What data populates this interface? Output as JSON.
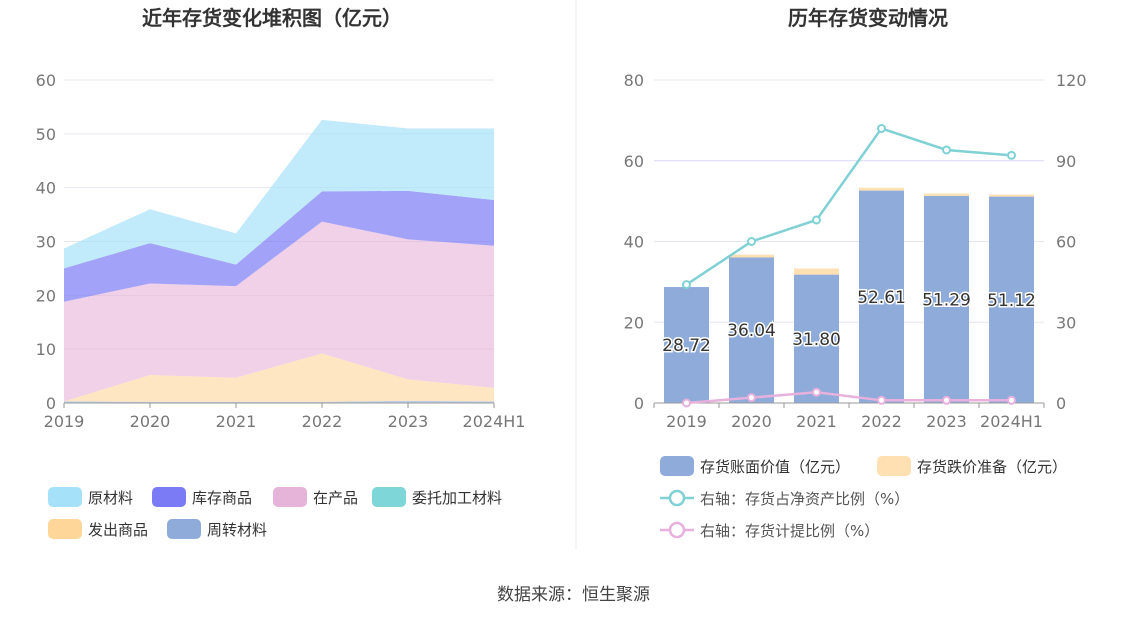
{
  "footer": {
    "source": "数据来源：恒生聚源"
  },
  "chart_data": [
    {
      "type": "area",
      "stacked": true,
      "title": "近年存货变化堆积图（亿元）",
      "categories": [
        "2019",
        "2020",
        "2021",
        "2022",
        "2023",
        "2024H1"
      ],
      "ylim": [
        0,
        60
      ],
      "yticks": [
        0,
        10,
        20,
        30,
        40,
        50,
        60
      ],
      "grid": true,
      "legend_position": "bottom",
      "series": [
        {
          "name": "周转材料",
          "color": "#8eabda",
          "values": [
            0.3,
            0.2,
            0.2,
            0.2,
            0.4,
            0.3
          ]
        },
        {
          "name": "发出商品",
          "color": "#ffd699",
          "values": [
            0,
            5,
            4.5,
            9,
            4,
            2.5
          ]
        },
        {
          "name": "在产品",
          "color": "#e6b3d9",
          "values": [
            18.5,
            17,
            17,
            24.5,
            26,
            26.4
          ]
        },
        {
          "name": "委托加工材料",
          "color": "#7fd6d9",
          "values": [
            0,
            0,
            0,
            0,
            0,
            0
          ]
        },
        {
          "name": "库存商品",
          "color": "#7b7bf5",
          "values": [
            6.2,
            7.5,
            4,
            5.6,
            9,
            8.5
          ]
        },
        {
          "name": "原材料",
          "color": "#a6e1fa",
          "values": [
            3.7,
            6.3,
            5.8,
            13.3,
            11.6,
            13.3
          ]
        }
      ],
      "legend_order": [
        "原材料",
        "库存商品",
        "在产品",
        "委托加工材料",
        "发出商品",
        "周转材料"
      ]
    },
    {
      "type": "bar",
      "title": "历年存货变动情况",
      "categories": [
        "2019",
        "2020",
        "2021",
        "2022",
        "2023",
        "2024H1"
      ],
      "ylim": [
        0,
        80
      ],
      "yticks": [
        0,
        20,
        40,
        60,
        80
      ],
      "y2lim": [
        0,
        120
      ],
      "y2ticks": [
        0,
        30,
        60,
        90,
        120
      ],
      "grid": true,
      "legend_position": "bottom",
      "series": [
        {
          "name": "存货账面价值（亿元）",
          "color": "#8eabda",
          "axis": "left",
          "kind": "bar",
          "values": [
            28.72,
            36.04,
            31.8,
            52.61,
            51.29,
            51.12
          ],
          "labels": [
            "28.72",
            "36.04",
            "31.80",
            "52.61",
            "51.29",
            "51.12"
          ]
        },
        {
          "name": "存货跌价准备（亿元）",
          "color": "#ffe0b3",
          "axis": "left",
          "kind": "bar",
          "values": [
            0,
            0.7,
            1.5,
            0.7,
            0.6,
            0.5
          ]
        },
        {
          "name": "右轴：存货占净资产比例（%）",
          "color": "#7fd1d4",
          "axis": "right",
          "kind": "line",
          "values": [
            44,
            60,
            68,
            102,
            94,
            92
          ]
        },
        {
          "name": "右轴：存货计提比例（%）",
          "color": "#e8b0dc",
          "axis": "right",
          "kind": "line",
          "values": [
            0,
            2,
            4,
            1,
            1,
            1
          ]
        }
      ]
    }
  ]
}
